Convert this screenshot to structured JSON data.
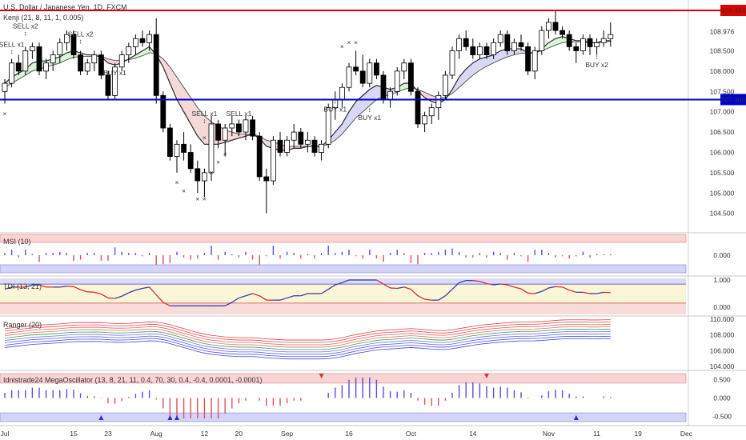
{
  "header": {
    "symbol_title": "U.S. Dollar / Japanese Yen, 1D, FXCM",
    "indicator_main": "Kenji (21, 8, 11, 1, 0.005)"
  },
  "colors": {
    "up": "#ffffff",
    "down": "#000000",
    "resistance": "#e00000",
    "support": "#0000cc",
    "cloud_bull": "#d8f5d8",
    "cloud_bear": "#f5d8d8",
    "cloud_blue": "#d8d8f5",
    "sell": "#e03030",
    "buy": "#4a4ad0"
  },
  "chart_data": [
    {
      "type": "candlestick",
      "title": "U.S. Dollar / Japanese Yen, 1D, FXCM",
      "ylim": [
        104.1,
        109.75
      ],
      "yticks": [
        "108.976",
        "108.500",
        "108.000",
        "107.500",
        "107.000",
        "106.500",
        "106.000",
        "105.500",
        "105.000",
        "104.500"
      ],
      "horizontal_lines": [
        {
          "name": "resistance",
          "value": 109.494,
          "label": "109.494"
        },
        {
          "name": "support",
          "value": 107.3,
          "label": "107.300"
        }
      ],
      "x_ticks": [
        "Jul",
        "15",
        "23",
        "Aug",
        "12",
        "20",
        "Sep",
        "16",
        "Oct",
        "14",
        "Nov",
        "11",
        "19",
        "Dec"
      ],
      "x_tick_index": [
        0,
        10,
        15,
        22,
        29,
        34,
        41,
        50,
        59,
        68,
        79,
        86,
        92,
        99
      ],
      "candles": [
        [
          107.5,
          107.8,
          107.2,
          107.7
        ],
        [
          107.7,
          108.3,
          107.6,
          108.2
        ],
        [
          108.2,
          108.4,
          107.9,
          108.0
        ],
        [
          108.0,
          108.6,
          107.9,
          108.5
        ],
        [
          108.5,
          108.7,
          108.3,
          108.6
        ],
        [
          108.6,
          108.7,
          107.9,
          108.0
        ],
        [
          108.0,
          108.3,
          107.8,
          108.2
        ],
        [
          108.2,
          108.5,
          108.0,
          108.4
        ],
        [
          108.4,
          108.8,
          108.2,
          108.7
        ],
        [
          108.7,
          109.0,
          108.5,
          108.9
        ],
        [
          108.9,
          109.0,
          108.3,
          108.4
        ],
        [
          108.4,
          108.5,
          107.9,
          108.0
        ],
        [
          108.0,
          108.3,
          107.9,
          108.2
        ],
        [
          108.2,
          108.5,
          108.0,
          108.4
        ],
        [
          108.4,
          108.5,
          107.8,
          107.9
        ],
        [
          107.9,
          108.0,
          107.3,
          107.4
        ],
        [
          107.4,
          108.2,
          107.3,
          108.1
        ],
        [
          108.1,
          108.5,
          108.0,
          108.4
        ],
        [
          108.4,
          108.7,
          108.2,
          108.6
        ],
        [
          108.6,
          108.9,
          108.4,
          108.8
        ],
        [
          108.8,
          109.0,
          108.6,
          108.7
        ],
        [
          108.7,
          109.0,
          108.5,
          108.9
        ],
        [
          108.9,
          109.3,
          107.2,
          107.4
        ],
        [
          107.4,
          107.5,
          106.5,
          106.6
        ],
        [
          106.6,
          106.7,
          105.8,
          105.9
        ],
        [
          105.9,
          106.3,
          105.5,
          106.2
        ],
        [
          106.2,
          106.5,
          105.8,
          106.0
        ],
        [
          106.0,
          106.2,
          105.5,
          105.6
        ],
        [
          105.6,
          105.8,
          105.0,
          105.3
        ],
        [
          105.3,
          105.6,
          104.9,
          105.5
        ],
        [
          105.5,
          106.9,
          105.3,
          106.7
        ],
        [
          106.7,
          106.8,
          106.1,
          106.3
        ],
        [
          106.3,
          106.7,
          105.9,
          106.6
        ],
        [
          106.6,
          106.9,
          106.4,
          106.7
        ],
        [
          106.7,
          106.8,
          106.4,
          106.5
        ],
        [
          106.5,
          106.9,
          106.3,
          106.8
        ],
        [
          106.8,
          106.9,
          106.3,
          106.4
        ],
        [
          106.4,
          106.5,
          105.3,
          105.4
        ],
        [
          105.4,
          105.6,
          104.5,
          105.3
        ],
        [
          105.3,
          106.4,
          105.2,
          106.3
        ],
        [
          106.3,
          106.5,
          105.9,
          106.0
        ],
        [
          106.0,
          106.4,
          105.9,
          106.3
        ],
        [
          106.3,
          106.7,
          106.1,
          106.5
        ],
        [
          106.5,
          106.6,
          106.1,
          106.2
        ],
        [
          106.2,
          106.5,
          106.0,
          106.3
        ],
        [
          106.3,
          106.4,
          105.9,
          106.0
        ],
        [
          106.0,
          106.3,
          105.8,
          106.2
        ],
        [
          106.2,
          107.2,
          106.1,
          107.1
        ],
        [
          107.1,
          107.5,
          106.8,
          107.3
        ],
        [
          107.3,
          107.7,
          107.1,
          107.6
        ],
        [
          107.6,
          108.2,
          107.5,
          108.1
        ],
        [
          108.1,
          108.5,
          107.9,
          108.0
        ],
        [
          108.0,
          108.4,
          107.6,
          107.7
        ],
        [
          107.7,
          108.3,
          107.6,
          108.2
        ],
        [
          108.2,
          108.3,
          107.8,
          107.9
        ],
        [
          107.9,
          108.0,
          107.2,
          107.3
        ],
        [
          107.3,
          107.6,
          107.1,
          107.5
        ],
        [
          107.5,
          108.1,
          107.4,
          108.0
        ],
        [
          108.0,
          108.3,
          107.8,
          108.2
        ],
        [
          108.2,
          108.3,
          107.4,
          107.5
        ],
        [
          107.5,
          107.6,
          106.6,
          106.7
        ],
        [
          106.7,
          107.0,
          106.5,
          106.9
        ],
        [
          106.9,
          107.2,
          106.7,
          107.1
        ],
        [
          107.1,
          107.5,
          106.8,
          107.4
        ],
        [
          107.4,
          108.0,
          107.3,
          107.9
        ],
        [
          107.9,
          108.6,
          107.8,
          108.5
        ],
        [
          108.5,
          108.9,
          108.3,
          108.8
        ],
        [
          108.8,
          109.0,
          108.5,
          108.6
        ],
        [
          108.6,
          108.8,
          108.3,
          108.4
        ],
        [
          108.4,
          108.7,
          108.3,
          108.6
        ],
        [
          108.6,
          108.7,
          108.3,
          108.4
        ],
        [
          108.4,
          108.8,
          108.3,
          108.7
        ],
        [
          108.7,
          109.0,
          108.6,
          108.9
        ],
        [
          108.9,
          109.0,
          108.4,
          108.5
        ],
        [
          108.5,
          108.8,
          108.4,
          108.7
        ],
        [
          108.7,
          108.9,
          108.5,
          108.6
        ],
        [
          108.6,
          108.7,
          107.9,
          108.0
        ],
        [
          108.0,
          108.6,
          107.8,
          108.5
        ],
        [
          108.5,
          109.1,
          108.4,
          109.0
        ],
        [
          109.0,
          109.3,
          108.8,
          109.2
        ],
        [
          109.2,
          109.5,
          108.9,
          109.0
        ],
        [
          109.0,
          109.1,
          108.8,
          108.9
        ],
        [
          108.9,
          109.0,
          108.5,
          108.6
        ],
        [
          108.6,
          108.7,
          108.2,
          108.5
        ],
        [
          108.5,
          108.9,
          108.4,
          108.8
        ],
        [
          108.8,
          108.9,
          108.4,
          108.6
        ],
        [
          108.6,
          108.8,
          108.4,
          108.7
        ],
        [
          108.7,
          109.0,
          108.6,
          108.8
        ],
        [
          108.8,
          109.2,
          108.6,
          108.9
        ]
      ],
      "ma_fast": [
        107.7,
        107.85,
        107.95,
        108.05,
        108.2,
        108.25,
        108.25,
        108.3,
        108.35,
        108.45,
        108.5,
        108.45,
        108.4,
        108.4,
        108.35,
        108.2,
        108.15,
        108.2,
        108.3,
        108.4,
        108.5,
        108.6,
        108.4,
        108.1,
        107.7,
        107.3,
        107.0,
        106.7,
        106.4,
        106.2,
        106.2,
        106.2,
        106.25,
        106.3,
        106.35,
        106.4,
        106.45,
        106.35,
        106.15,
        106.1,
        106.05,
        106.05,
        106.1,
        106.1,
        106.15,
        106.15,
        106.15,
        106.3,
        106.5,
        106.7,
        107.0,
        107.25,
        107.4,
        107.55,
        107.65,
        107.6,
        107.55,
        107.6,
        107.7,
        107.7,
        107.5,
        107.35,
        107.25,
        107.2,
        107.3,
        107.55,
        107.85,
        108.05,
        108.2,
        108.3,
        108.35,
        108.4,
        108.5,
        108.55,
        108.55,
        108.55,
        108.45,
        108.45,
        108.55,
        108.7,
        108.8,
        108.85,
        108.8,
        108.75,
        108.75,
        108.7,
        108.7,
        108.75,
        108.75
      ],
      "ma_slow": [
        107.6,
        107.7,
        107.8,
        107.9,
        108.0,
        108.05,
        108.1,
        108.15,
        108.2,
        108.28,
        108.34,
        108.36,
        108.36,
        108.37,
        108.36,
        108.3,
        108.26,
        108.26,
        108.28,
        108.32,
        108.38,
        108.45,
        108.43,
        108.3,
        108.1,
        107.85,
        107.6,
        107.35,
        107.1,
        106.9,
        106.75,
        106.65,
        106.55,
        106.5,
        106.45,
        106.45,
        106.45,
        106.4,
        106.3,
        106.25,
        106.2,
        106.15,
        106.15,
        106.15,
        106.15,
        106.15,
        106.15,
        106.2,
        106.3,
        106.45,
        106.65,
        106.85,
        107.0,
        107.15,
        107.3,
        107.38,
        107.42,
        107.48,
        107.55,
        107.6,
        107.55,
        107.48,
        107.4,
        107.35,
        107.35,
        107.45,
        107.6,
        107.75,
        107.9,
        108.02,
        108.12,
        108.2,
        108.28,
        108.35,
        108.4,
        108.44,
        108.44,
        108.45,
        108.5,
        108.57,
        108.64,
        108.7,
        108.72,
        108.72,
        108.72,
        108.7,
        108.7,
        108.72,
        108.73
      ],
      "signals": [
        {
          "label": "SELL x1",
          "kind": "sell",
          "index": 1,
          "value": 108.6
        },
        {
          "label": "SELL x2",
          "kind": "sell",
          "index": 3,
          "value": 109.05
        },
        {
          "label": "SELL x2",
          "kind": "sell",
          "index": 11,
          "value": 108.85
        },
        {
          "label": "BUY x1",
          "kind": "buy",
          "index": 16,
          "value": 107.9
        },
        {
          "label": "SELL x1",
          "kind": "sell",
          "index": 29,
          "value": 106.9
        },
        {
          "label": "SELL x1",
          "kind": "sell",
          "index": 34,
          "value": 106.9
        },
        {
          "label": "BUY x1",
          "kind": "buy",
          "index": 48,
          "value": 107.0
        },
        {
          "label": "BUY x1",
          "kind": "buy",
          "index": 53,
          "value": 106.8
        },
        {
          "label": "BUY x2",
          "kind": "buy",
          "index": 86,
          "value": 108.1
        }
      ],
      "x_marks": [
        {
          "kind": "sell",
          "index": 0,
          "value": 106.9
        },
        {
          "kind": "sell",
          "index": 25,
          "value": 105.2
        },
        {
          "kind": "sell",
          "index": 26,
          "value": 105.0
        },
        {
          "kind": "sell",
          "index": 28,
          "value": 104.8
        },
        {
          "kind": "sell",
          "index": 29,
          "value": 104.8
        },
        {
          "kind": "sell",
          "index": 30,
          "value": 105.45
        },
        {
          "kind": "sell",
          "index": 31,
          "value": 105.7
        },
        {
          "kind": "sell",
          "index": 32,
          "value": 105.9
        },
        {
          "kind": "sell",
          "index": 29,
          "value": 106.3
        },
        {
          "kind": "buy",
          "index": 49,
          "value": 108.55
        },
        {
          "kind": "buy",
          "index": 50,
          "value": 108.65
        },
        {
          "kind": "buy",
          "index": 51,
          "value": 108.65
        }
      ]
    },
    {
      "type": "bar",
      "title": "MSI (10)",
      "ylim": [
        -1,
        1
      ],
      "yticks": [
        "0.000"
      ]
    },
    {
      "type": "line",
      "title": "TDI (13, 21)",
      "ylim": [
        -0.2,
        1.1
      ],
      "yticks": [
        "1.000",
        "0.000"
      ]
    },
    {
      "type": "line",
      "title": "Ranger (20)",
      "ylim": [
        103.6,
        110.2
      ],
      "yticks": [
        "110.000",
        "108.000",
        "106.000",
        "104.000"
      ]
    },
    {
      "type": "bar",
      "title": "Idnistrade24 MegaOscillator (13, 8, 21, 11, 0.4, 70, 30, 0.4, -0.4, 0.0001, -0.0001)",
      "ylim": [
        -0.7,
        0.7
      ],
      "yticks": [
        "0.500",
        "0.000",
        "-0.500"
      ]
    }
  ]
}
